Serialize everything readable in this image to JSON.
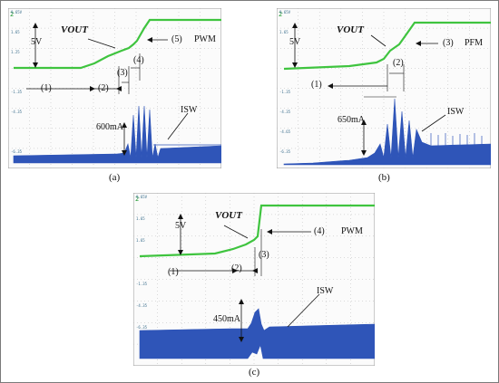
{
  "figure": {
    "panels": [
      {
        "caption": "(a)",
        "labels": {
          "volt": "5V",
          "vout": "VOUT",
          "p1": "(1)",
          "p2": "(2)",
          "p3": "(3)",
          "p4": "(4)",
          "p5": "(5)",
          "mode": "PWM",
          "current": "600mA",
          "isw": "ISW"
        }
      },
      {
        "caption": "(b)",
        "labels": {
          "volt": "5V",
          "vout": "VOUT",
          "p1": "(1)",
          "p2": "(2)",
          "p3": "(3)",
          "mode": "PFM",
          "current": "650mA",
          "isw": "ISW"
        }
      },
      {
        "caption": "(c)",
        "labels": {
          "volt": "5V",
          "vout": "VOUT",
          "p1": "(1)",
          "p2": "(2)",
          "p3": "(3)",
          "p4": "(4)",
          "mode": "PWM",
          "current": "450mA",
          "isw": "ISW"
        }
      }
    ],
    "axis_ticks": [
      "9.65V",
      "1.65",
      "1.25",
      "1.65",
      "-1.35",
      "-4.35",
      "-4.65",
      "-6.35"
    ],
    "colors": {
      "vout_trace": "#3fc43f",
      "isw_trace": "#2f55b8",
      "grid": "#b8b8b8",
      "frame": "#7a7a7a"
    }
  }
}
